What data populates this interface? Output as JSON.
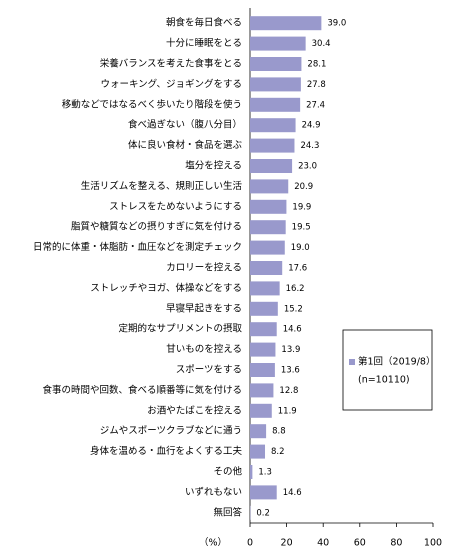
{
  "chart_data": {
    "type": "barh",
    "categories": [
      "朝食を毎日食べる",
      "十分に睡眠をとる",
      "栄養バランスを考えた食事をとる",
      "ウォーキング、ジョギングをする",
      "移動などではなるべく歩いたり階段を使う",
      "食べ過ぎない（腹八分目）",
      "体に良い食材・食品を選ぶ",
      "塩分を控える",
      "生活リズムを整える、規則正しい生活",
      "ストレスをためないようにする",
      "脂質や糖質などの摂りすぎに気を付ける",
      "日常的に体重・体脂肪・血圧などを測定チェック",
      "カロリーを控える",
      "ストレッチやヨガ、体操などをする",
      "早寝早起きをする",
      "定期的なサプリメントの摂取",
      "甘いものを控える",
      "スポーツをする",
      "食事の時間や回数、食べる順番等に気を付ける",
      "お酒やたばこを控える",
      "ジムやスポーツクラブなどに通う",
      "身体を温める・血行をよくする工夫",
      "その他",
      "いずれもない",
      "無回答"
    ],
    "series": [
      {
        "name": "第1回（2019/8）",
        "color": "#9999cc",
        "values": [
          39.0,
          30.4,
          28.1,
          27.8,
          27.4,
          24.9,
          24.3,
          23.0,
          20.9,
          19.9,
          19.5,
          19.0,
          17.6,
          16.2,
          15.2,
          14.6,
          13.9,
          13.6,
          12.8,
          11.9,
          8.8,
          8.2,
          1.3,
          14.6,
          0.2
        ],
        "value_labels": [
          "39.0",
          "30.4",
          "28.1",
          "27.8",
          "27.4",
          "24.9",
          "24.3",
          "23.0",
          "20.9",
          "19.9",
          "19.5",
          "19.0",
          "17.6",
          "16.2",
          "15.2",
          "14.6",
          "13.9",
          "13.6",
          "12.8",
          "11.9",
          "8.8",
          "8.2",
          "1.3",
          "14.6",
          "0.2"
        ]
      }
    ],
    "legend_note": "(n=10110)",
    "xlabel": "（%）",
    "xlim": [
      0,
      100
    ],
    "xticks": [
      0,
      20,
      40,
      60,
      80,
      100
    ]
  }
}
